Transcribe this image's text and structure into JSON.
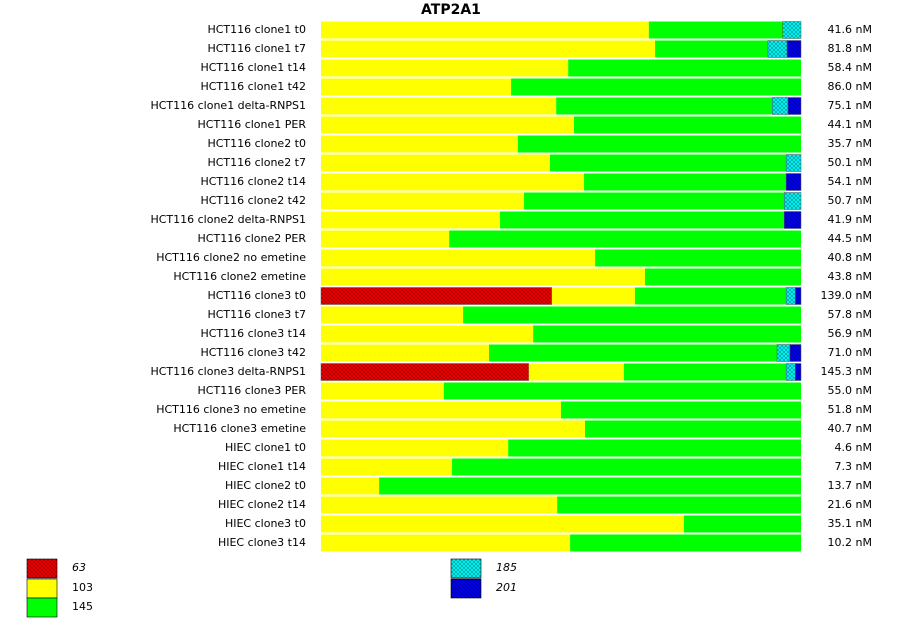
{
  "chart_data": {
    "type": "stacked-bar-horizontal",
    "title": "ATP2A1",
    "xlim": [
      0,
      100
    ],
    "categories": [
      "HCT116 clone1 t0",
      "HCT116 clone1 t7",
      "HCT116 clone1 t14",
      "HCT116 clone1 t42",
      "HCT116 clone1 delta-RNPS1",
      "HCT116 clone1 PER",
      "HCT116 clone2 t0",
      "HCT116 clone2 t7",
      "HCT116 clone2 t14",
      "HCT116 clone2 t42",
      "HCT116 clone2 delta-RNPS1",
      "HCT116 clone2 PER",
      "HCT116 clone2 no emetine",
      "HCT116 clone2 emetine",
      "HCT116 clone3 t0",
      "HCT116 clone3 t7",
      "HCT116 clone3 t14",
      "HCT116 clone3 t42",
      "HCT116 clone3 delta-RNPS1",
      "HCT116 clone3 PER",
      "HCT116 clone3 no emetine",
      "HCT116 clone3 emetine",
      "HIEC clone1 t0",
      "HIEC clone1 t14",
      "HIEC clone2 t0",
      "HIEC clone2 t14",
      "HIEC clone3 t0",
      "HIEC clone3 t14"
    ],
    "row_labels": [
      "41.6 nM",
      "81.8 nM",
      "58.4 nM",
      "86.0 nM",
      "75.1 nM",
      "44.1 nM",
      "35.7 nM",
      "50.1 nM",
      "54.1 nM",
      "50.7 nM",
      "41.9 nM",
      "44.5 nM",
      "40.8 nM",
      "43.8 nM",
      "139.0 nM",
      "57.8 nM",
      "56.9 nM",
      "71.0 nM",
      "145.3 nM",
      "55.0 nM",
      "51.8 nM",
      "40.7 nM",
      "4.6 nM",
      "7.3 nM",
      "13.7 nM",
      "21.6 nM",
      "35.1 nM",
      "10.2 nM"
    ],
    "series": [
      {
        "name": "63",
        "color": "#ff0000",
        "hatched": true,
        "values": [
          0,
          0,
          0,
          0,
          0,
          0,
          0,
          0,
          0,
          0,
          0,
          0,
          0,
          0,
          48.1,
          0,
          0,
          0,
          43.3,
          0,
          0,
          0,
          0,
          0,
          0,
          0,
          0,
          0
        ]
      },
      {
        "name": "103",
        "color": "#ffff00",
        "hatched": false,
        "values": [
          68.3,
          69.6,
          51.5,
          39.6,
          49.0,
          52.7,
          41.0,
          47.7,
          54.8,
          42.3,
          37.3,
          26.7,
          57.1,
          67.5,
          17.3,
          29.6,
          44.2,
          35.0,
          19.8,
          25.6,
          50.0,
          55.0,
          39.0,
          27.3,
          12.1,
          49.2,
          75.6,
          51.9
        ]
      },
      {
        "name": "145",
        "color": "#00ff00",
        "hatched": false,
        "values": [
          27.9,
          23.5,
          48.5,
          60.4,
          45.0,
          47.3,
          59.0,
          49.2,
          42.1,
          54.2,
          59.2,
          73.3,
          42.9,
          32.5,
          31.5,
          70.4,
          55.8,
          60.0,
          33.8,
          74.4,
          50.0,
          45.0,
          61.0,
          72.7,
          87.9,
          50.8,
          24.4,
          48.1
        ]
      },
      {
        "name": "185",
        "color": "#00ffff",
        "hatched": true,
        "values": [
          3.8,
          4.0,
          0,
          0,
          3.3,
          0,
          0,
          3.1,
          0,
          3.5,
          0,
          0,
          0,
          0,
          1.9,
          0,
          0,
          2.7,
          1.9,
          0,
          0,
          0,
          0,
          0,
          0,
          0,
          0,
          0
        ]
      },
      {
        "name": "201",
        "color": "#0000ff",
        "hatched": true,
        "values": [
          0,
          2.9,
          0,
          0,
          2.7,
          0,
          0,
          0,
          3.1,
          0,
          3.5,
          0,
          0,
          0,
          1.2,
          0,
          0,
          2.3,
          1.2,
          0,
          0,
          0,
          0,
          0,
          0,
          0,
          0,
          0
        ]
      }
    ]
  }
}
